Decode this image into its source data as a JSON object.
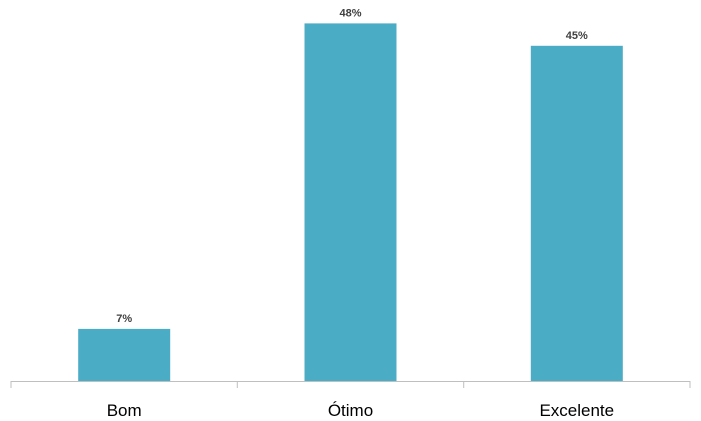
{
  "chart_data": {
    "type": "bar",
    "categories": [
      "Bom",
      "Ótimo",
      "Excelente"
    ],
    "values": [
      7,
      48,
      45
    ],
    "value_labels": [
      "7%",
      "48%",
      "45%"
    ],
    "title": "",
    "xlabel": "",
    "ylabel": "",
    "ylim": [
      0,
      50
    ],
    "grid": false,
    "legend": "none",
    "colors": {
      "bar": "#4BACC6",
      "axis": "#bfbfbf",
      "data_label": "#404040",
      "tick_label": "#000000"
    }
  }
}
